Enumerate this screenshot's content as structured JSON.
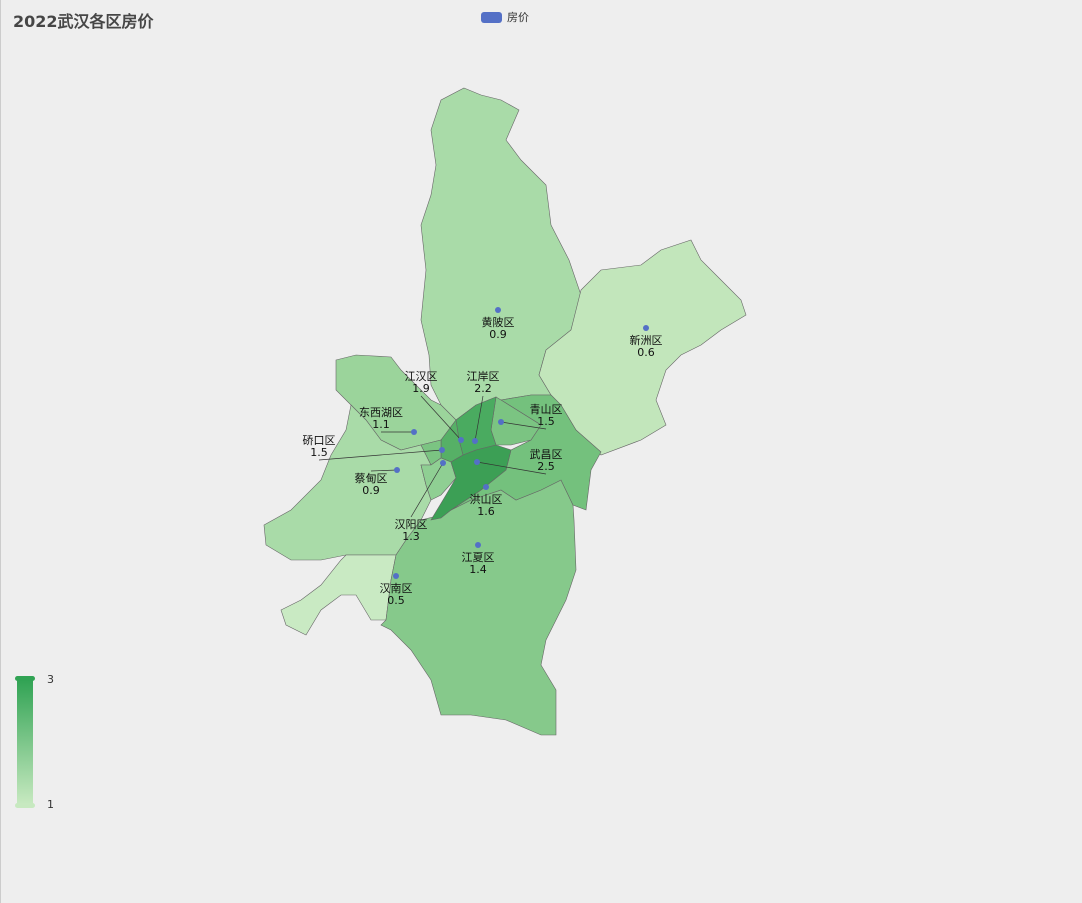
{
  "title": "2022武汉各区房价",
  "legend": {
    "label": "房价",
    "color": "#5470c6"
  },
  "visual_map": {
    "min_label": "1",
    "max_label": "3",
    "min": 1,
    "max": 3,
    "color_low": "#c7e9c0",
    "color_high": "#31a354"
  },
  "chart_data": {
    "type": "map",
    "title": "2022武汉各区房价",
    "series_name": "房价",
    "regions": [
      {
        "name": "黄陂区",
        "value": 0.9,
        "fill": "#a9dba8"
      },
      {
        "name": "新洲区",
        "value": 0.6,
        "fill": "#c2e6bb"
      },
      {
        "name": "东西湖区",
        "value": 1.1,
        "fill": "#9bd49b"
      },
      {
        "name": "蔡甸区",
        "value": 0.9,
        "fill": "#a9dba8"
      },
      {
        "name": "汉南区",
        "value": 0.5,
        "fill": "#c9eac3"
      },
      {
        "name": "江夏区",
        "value": 1.4,
        "fill": "#86c98b"
      },
      {
        "name": "洪山区",
        "value": 1.6,
        "fill": "#74c17d"
      },
      {
        "name": "青山区",
        "value": 1.5,
        "fill": "#7bc482"
      },
      {
        "name": "江岸区",
        "value": 2.2,
        "fill": "#4aab60"
      },
      {
        "name": "江汉区",
        "value": 1.9,
        "fill": "#56b066"
      },
      {
        "name": "硚口区",
        "value": 1.5,
        "fill": "#7bc482"
      },
      {
        "name": "汉阳区",
        "value": 1.3,
        "fill": "#8fcf93"
      },
      {
        "name": "武昌区",
        "value": 2.5,
        "fill": "#3c9f55"
      }
    ]
  }
}
